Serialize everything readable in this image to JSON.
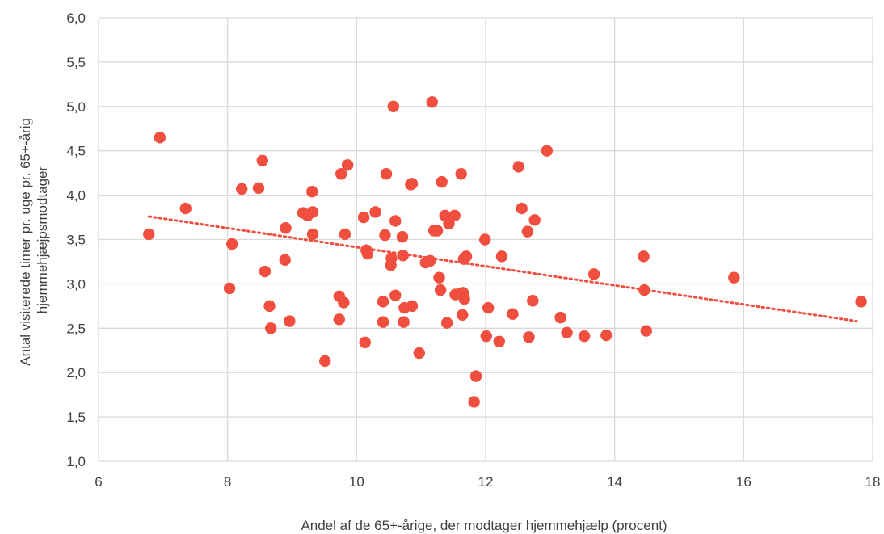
{
  "chart_data": {
    "type": "scatter",
    "title": "",
    "xlabel": "Andel af de 65+-årige, der modtager hjemmehjælp (procent)",
    "ylabel_lines": [
      "Antal visiterede timer pr. uge pr. 65+-årig",
      "hjemmehjæjpsmodtager"
    ],
    "xlim": [
      6,
      18
    ],
    "ylim": [
      1.0,
      6.0
    ],
    "x_ticks": [
      "6",
      "8",
      "10",
      "12",
      "14",
      "16",
      "18"
    ],
    "y_ticks": [
      "1,0",
      "1,5",
      "2,0",
      "2,5",
      "3,0",
      "3,5",
      "4,0",
      "4,5",
      "5,0",
      "5,5",
      "6,0"
    ],
    "grid": true,
    "legend": "none",
    "marker_color": "#f04e3e",
    "trendline": {
      "style": "dotted",
      "color": "#f04e3e",
      "from": [
        6.78,
        3.76
      ],
      "to": [
        17.75,
        2.58
      ]
    },
    "points": [
      [
        6.78,
        3.56
      ],
      [
        6.95,
        4.65
      ],
      [
        7.35,
        3.85
      ],
      [
        8.03,
        2.95
      ],
      [
        8.07,
        3.45
      ],
      [
        8.22,
        4.07
      ],
      [
        8.48,
        4.08
      ],
      [
        8.54,
        4.39
      ],
      [
        8.58,
        3.14
      ],
      [
        8.65,
        2.75
      ],
      [
        8.67,
        2.5
      ],
      [
        8.89,
        3.27
      ],
      [
        8.9,
        3.63
      ],
      [
        8.96,
        2.58
      ],
      [
        9.17,
        3.8
      ],
      [
        9.24,
        3.77
      ],
      [
        9.31,
        4.04
      ],
      [
        9.32,
        3.81
      ],
      [
        9.32,
        3.56
      ],
      [
        9.51,
        2.13
      ],
      [
        9.73,
        2.86
      ],
      [
        9.73,
        2.6
      ],
      [
        9.76,
        4.24
      ],
      [
        9.8,
        2.79
      ],
      [
        9.82,
        3.56
      ],
      [
        9.86,
        4.34
      ],
      [
        10.11,
        3.75
      ],
      [
        10.13,
        2.34
      ],
      [
        10.15,
        3.38
      ],
      [
        10.17,
        3.34
      ],
      [
        10.29,
        3.81
      ],
      [
        10.41,
        2.57
      ],
      [
        10.41,
        2.8
      ],
      [
        10.44,
        3.55
      ],
      [
        10.46,
        4.24
      ],
      [
        10.53,
        3.21
      ],
      [
        10.54,
        3.29
      ],
      [
        10.57,
        5.0
      ],
      [
        10.6,
        2.87
      ],
      [
        10.6,
        3.71
      ],
      [
        10.71,
        3.53
      ],
      [
        10.72,
        3.32
      ],
      [
        10.73,
        2.57
      ],
      [
        10.74,
        2.73
      ],
      [
        10.84,
        4.12
      ],
      [
        10.86,
        4.13
      ],
      [
        10.86,
        2.75
      ],
      [
        10.97,
        2.22
      ],
      [
        11.07,
        3.24
      ],
      [
        11.14,
        3.26
      ],
      [
        11.17,
        5.05
      ],
      [
        11.2,
        3.6
      ],
      [
        11.25,
        3.6
      ],
      [
        11.28,
        3.07
      ],
      [
        11.3,
        2.93
      ],
      [
        11.32,
        4.15
      ],
      [
        11.37,
        3.77
      ],
      [
        11.4,
        2.56
      ],
      [
        11.43,
        3.68
      ],
      [
        11.52,
        3.77
      ],
      [
        11.53,
        2.88
      ],
      [
        11.6,
        2.89
      ],
      [
        11.62,
        4.24
      ],
      [
        11.64,
        2.65
      ],
      [
        11.65,
        2.9
      ],
      [
        11.66,
        3.28
      ],
      [
        11.67,
        2.83
      ],
      [
        11.7,
        3.31
      ],
      [
        11.82,
        1.67
      ],
      [
        11.85,
        1.96
      ],
      [
        11.99,
        3.5
      ],
      [
        12.01,
        2.41
      ],
      [
        12.04,
        2.73
      ],
      [
        12.21,
        2.35
      ],
      [
        12.25,
        3.31
      ],
      [
        12.42,
        2.66
      ],
      [
        12.51,
        4.32
      ],
      [
        12.56,
        3.85
      ],
      [
        12.65,
        3.59
      ],
      [
        12.67,
        2.4
      ],
      [
        12.73,
        2.81
      ],
      [
        12.76,
        3.72
      ],
      [
        12.95,
        4.5
      ],
      [
        13.16,
        2.62
      ],
      [
        13.26,
        2.45
      ],
      [
        13.53,
        2.41
      ],
      [
        13.68,
        3.11
      ],
      [
        13.87,
        2.42
      ],
      [
        14.45,
        3.31
      ],
      [
        14.46,
        2.93
      ],
      [
        14.49,
        2.47
      ],
      [
        15.85,
        3.07
      ],
      [
        17.82,
        2.8
      ]
    ]
  }
}
